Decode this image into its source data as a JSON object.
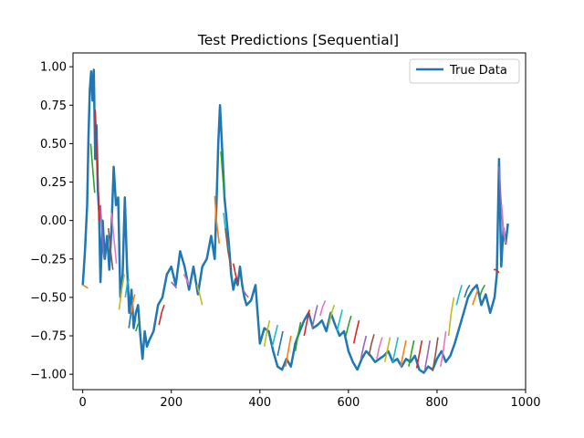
{
  "chart_data": {
    "type": "line",
    "title": "Test Predictions [Sequential]",
    "xlabel": "",
    "ylabel": "",
    "xlim": [
      -22,
      1000
    ],
    "ylim": [
      -1.1,
      1.09
    ],
    "x_ticks": [
      0,
      200,
      400,
      600,
      800,
      1000
    ],
    "x_tick_labels": [
      "0",
      "200",
      "400",
      "600",
      "800",
      "1000"
    ],
    "y_ticks": [
      1.0,
      0.75,
      0.5,
      0.25,
      0.0,
      -0.25,
      -0.5,
      -0.75,
      -1.0
    ],
    "y_tick_labels": [
      "1.00",
      "0.75",
      "0.50",
      "0.25",
      "0.00",
      "−0.25",
      "−0.50",
      "−0.75",
      "−1.00"
    ],
    "grid": false,
    "legend_position": "top-right",
    "series": [
      {
        "name": "True Data",
        "color": "#1f77b4",
        "x": [
          0,
          5,
          10,
          13,
          16,
          19,
          22,
          25,
          28,
          31,
          34,
          37,
          40,
          45,
          50,
          55,
          60,
          65,
          70,
          75,
          80,
          85,
          90,
          95,
          100,
          105,
          110,
          115,
          120,
          125,
          130,
          135,
          140,
          145,
          150,
          160,
          170,
          180,
          190,
          200,
          210,
          220,
          230,
          240,
          250,
          260,
          270,
          280,
          290,
          298,
          302,
          306,
          310,
          315,
          320,
          325,
          330,
          335,
          340,
          345,
          350,
          355,
          360,
          365,
          370,
          380,
          390,
          400,
          410,
          420,
          430,
          440,
          450,
          460,
          470,
          480,
          490,
          500,
          510,
          520,
          530,
          540,
          550,
          560,
          570,
          580,
          590,
          600,
          610,
          620,
          630,
          640,
          650,
          660,
          670,
          680,
          690,
          700,
          710,
          720,
          730,
          740,
          750,
          760,
          770,
          780,
          790,
          800,
          810,
          820,
          830,
          840,
          850,
          860,
          870,
          880,
          890,
          900,
          910,
          920,
          930,
          935,
          940,
          945,
          950,
          955,
          960
        ],
        "values": [
          -0.42,
          -0.2,
          0.1,
          0.55,
          0.85,
          0.97,
          0.78,
          0.98,
          0.4,
          0.62,
          0.2,
          0.05,
          -0.4,
          0.0,
          -0.25,
          -0.1,
          -0.32,
          -0.05,
          0.35,
          0.1,
          0.15,
          -0.5,
          -0.35,
          0.15,
          -0.3,
          -0.6,
          -0.45,
          -0.7,
          -0.6,
          -0.55,
          -0.75,
          -0.9,
          -0.72,
          -0.82,
          -0.78,
          -0.72,
          -0.55,
          -0.5,
          -0.35,
          -0.3,
          -0.42,
          -0.2,
          -0.3,
          -0.45,
          -0.3,
          -0.48,
          -0.3,
          -0.25,
          -0.1,
          -0.25,
          0.1,
          0.5,
          0.75,
          0.45,
          0.15,
          0.0,
          -0.15,
          -0.35,
          -0.45,
          -0.38,
          -0.42,
          -0.3,
          -0.42,
          -0.5,
          -0.55,
          -0.52,
          -0.42,
          -0.8,
          -0.7,
          -0.72,
          -0.85,
          -0.95,
          -0.97,
          -0.9,
          -0.95,
          -0.8,
          -0.72,
          -0.65,
          -0.6,
          -0.7,
          -0.68,
          -0.65,
          -0.72,
          -0.6,
          -0.68,
          -0.75,
          -0.72,
          -0.85,
          -0.92,
          -0.97,
          -0.9,
          -0.85,
          -0.88,
          -0.92,
          -0.9,
          -0.88,
          -0.85,
          -0.92,
          -0.9,
          -0.95,
          -0.9,
          -0.92,
          -0.88,
          -0.97,
          -0.99,
          -0.95,
          -0.97,
          -0.9,
          -0.85,
          -0.92,
          -0.88,
          -0.8,
          -0.7,
          -0.6,
          -0.5,
          -0.45,
          -0.42,
          -0.55,
          -0.48,
          -0.6,
          -0.5,
          -0.35,
          0.4,
          -0.3,
          -0.05,
          -0.15,
          -0.02
        ]
      }
    ],
    "prediction_segments": [
      {
        "color": "#ff7f0e",
        "x": [
          0,
          6,
          12
        ],
        "values": [
          -0.42,
          -0.43,
          -0.44
        ]
      },
      {
        "color": "#2ca02c",
        "x": [
          18,
          22,
          27
        ],
        "values": [
          0.5,
          0.35,
          0.18
        ]
      },
      {
        "color": "#d62728",
        "x": [
          28,
          33,
          37
        ],
        "values": [
          0.72,
          0.4,
          0.0
        ]
      },
      {
        "color": "#9467bd",
        "x": [
          40,
          44,
          48
        ],
        "values": [
          0.1,
          -0.1,
          -0.25
        ]
      },
      {
        "color": "#8c564b",
        "x": [
          58,
          63,
          68
        ],
        "values": [
          -0.05,
          -0.2,
          -0.32
        ]
      },
      {
        "color": "#e377c2",
        "x": [
          65,
          70,
          76
        ],
        "values": [
          0.05,
          -0.1,
          -0.28
        ]
      },
      {
        "color": "#bcbd22",
        "x": [
          82,
          88,
          94
        ],
        "values": [
          -0.58,
          -0.45,
          -0.35
        ]
      },
      {
        "color": "#17becf",
        "x": [
          96,
          100,
          104
        ],
        "values": [
          -0.5,
          -0.42,
          -0.38
        ]
      },
      {
        "color": "#1f77b4",
        "x": [
          104,
          108,
          112
        ],
        "values": [
          -0.7,
          -0.62,
          -0.55
        ]
      },
      {
        "color": "#ff7f0e",
        "x": [
          110,
          114,
          118
        ],
        "values": [
          -0.6,
          -0.52,
          -0.48
        ]
      },
      {
        "color": "#2ca02c",
        "x": [
          120,
          124,
          128
        ],
        "values": [
          -0.72,
          -0.68,
          -0.66
        ]
      },
      {
        "color": "#d62728",
        "x": [
          172,
          178,
          184
        ],
        "values": [
          -0.68,
          -0.6,
          -0.55
        ]
      },
      {
        "color": "#9467bd",
        "x": [
          200,
          206,
          212
        ],
        "values": [
          -0.4,
          -0.42,
          -0.44
        ]
      },
      {
        "color": "#e377c2",
        "x": [
          228,
          234,
          240
        ],
        "values": [
          -0.35,
          -0.38,
          -0.42
        ]
      },
      {
        "color": "#bcbd22",
        "x": [
          258,
          264,
          270
        ],
        "values": [
          -0.42,
          -0.48,
          -0.55
        ]
      },
      {
        "color": "#ff7f0e",
        "x": [
          298,
          302,
          308
        ],
        "values": [
          0.16,
          0.0,
          -0.15
        ]
      },
      {
        "color": "#2ca02c",
        "x": [
          312,
          316,
          320
        ],
        "values": [
          0.45,
          0.3,
          0.15
        ]
      },
      {
        "color": "#17becf",
        "x": [
          318,
          324,
          330
        ],
        "values": [
          0.05,
          -0.1,
          -0.2
        ]
      },
      {
        "color": "#8c564b",
        "x": [
          322,
          328,
          336
        ],
        "values": [
          -0.05,
          -0.2,
          -0.32
        ]
      },
      {
        "color": "#d62728",
        "x": [
          340,
          345,
          350
        ],
        "values": [
          -0.28,
          -0.35,
          -0.4
        ]
      },
      {
        "color": "#9467bd",
        "x": [
          362,
          368,
          374
        ],
        "values": [
          -0.45,
          -0.48,
          -0.5
        ]
      },
      {
        "color": "#bcbd22",
        "x": [
          410,
          416,
          422
        ],
        "values": [
          -0.82,
          -0.72,
          -0.65
        ]
      },
      {
        "color": "#17becf",
        "x": [
          428,
          434,
          440
        ],
        "values": [
          -0.82,
          -0.75,
          -0.68
        ]
      },
      {
        "color": "#1f77b4",
        "x": [
          440,
          446,
          452
        ],
        "values": [
          -0.88,
          -0.8,
          -0.72
        ]
      },
      {
        "color": "#ff7f0e",
        "x": [
          458,
          464,
          470
        ],
        "values": [
          -0.95,
          -0.85,
          -0.75
        ]
      },
      {
        "color": "#2ca02c",
        "x": [
          480,
          486,
          492
        ],
        "values": [
          -0.85,
          -0.75,
          -0.66
        ]
      },
      {
        "color": "#d62728",
        "x": [
          500,
          506,
          512
        ],
        "values": [
          -0.75,
          -0.66,
          -0.58
        ]
      },
      {
        "color": "#9467bd",
        "x": [
          518,
          524,
          530
        ],
        "values": [
          -0.7,
          -0.62,
          -0.55
        ]
      },
      {
        "color": "#e377c2",
        "x": [
          536,
          542,
          548
        ],
        "values": [
          -0.62,
          -0.56,
          -0.52
        ]
      },
      {
        "color": "#bcbd22",
        "x": [
          556,
          562,
          568
        ],
        "values": [
          -0.68,
          -0.6,
          -0.55
        ]
      },
      {
        "color": "#17becf",
        "x": [
          574,
          580,
          586
        ],
        "values": [
          -0.72,
          -0.65,
          -0.58
        ]
      },
      {
        "color": "#2ca02c",
        "x": [
          594,
          600,
          606
        ],
        "values": [
          -0.75,
          -0.68,
          -0.62
        ]
      },
      {
        "color": "#d62728",
        "x": [
          612,
          618,
          624
        ],
        "values": [
          -0.8,
          -0.72,
          -0.65
        ]
      },
      {
        "color": "#9467bd",
        "x": [
          628,
          634,
          640
        ],
        "values": [
          -0.9,
          -0.82,
          -0.75
        ]
      },
      {
        "color": "#8c564b",
        "x": [
          646,
          652,
          658
        ],
        "values": [
          -0.88,
          -0.8,
          -0.74
        ]
      },
      {
        "color": "#e377c2",
        "x": [
          664,
          670,
          676
        ],
        "values": [
          -0.9,
          -0.82,
          -0.76
        ]
      },
      {
        "color": "#bcbd22",
        "x": [
          682,
          688,
          694
        ],
        "values": [
          -0.92,
          -0.84,
          -0.76
        ]
      },
      {
        "color": "#17becf",
        "x": [
          700,
          706,
          712
        ],
        "values": [
          -0.92,
          -0.84,
          -0.76
        ]
      },
      {
        "color": "#ff7f0e",
        "x": [
          718,
          724,
          730
        ],
        "values": [
          -0.95,
          -0.86,
          -0.78
        ]
      },
      {
        "color": "#2ca02c",
        "x": [
          736,
          742,
          748
        ],
        "values": [
          -0.95,
          -0.86,
          -0.78
        ]
      },
      {
        "color": "#d62728",
        "x": [
          754,
          760,
          766
        ],
        "values": [
          -0.96,
          -0.87,
          -0.78
        ]
      },
      {
        "color": "#9467bd",
        "x": [
          772,
          778,
          784
        ],
        "values": [
          -0.98,
          -0.88,
          -0.78
        ]
      },
      {
        "color": "#8c564b",
        "x": [
          790,
          796,
          802
        ],
        "values": [
          -0.98,
          -0.88,
          -0.76
        ]
      },
      {
        "color": "#e377c2",
        "x": [
          808,
          814,
          820
        ],
        "values": [
          -0.95,
          -0.85,
          -0.72
        ]
      },
      {
        "color": "#bcbd22",
        "x": [
          826,
          832,
          838
        ],
        "values": [
          -0.75,
          -0.6,
          -0.5
        ]
      },
      {
        "color": "#17becf",
        "x": [
          844,
          850,
          856
        ],
        "values": [
          -0.55,
          -0.48,
          -0.42
        ]
      },
      {
        "color": "#1f77b4",
        "x": [
          862,
          868,
          874
        ],
        "values": [
          -0.5,
          -0.45,
          -0.42
        ]
      },
      {
        "color": "#ff7f0e",
        "x": [
          880,
          886,
          892
        ],
        "values": [
          -0.55,
          -0.5,
          -0.45
        ]
      },
      {
        "color": "#2ca02c",
        "x": [
          896,
          902,
          908
        ],
        "values": [
          -0.5,
          -0.45,
          -0.42
        ]
      },
      {
        "color": "#d62728",
        "x": [
          928,
          934,
          940
        ],
        "values": [
          -0.32,
          -0.32,
          -0.34
        ]
      },
      {
        "color": "#9467bd",
        "x": [
          940,
          944,
          950
        ],
        "values": [
          0.35,
          0.15,
          -0.1
        ]
      },
      {
        "color": "#e377c2",
        "x": [
          946,
          950,
          955
        ],
        "values": [
          0.1,
          -0.05,
          -0.15
        ]
      }
    ]
  }
}
